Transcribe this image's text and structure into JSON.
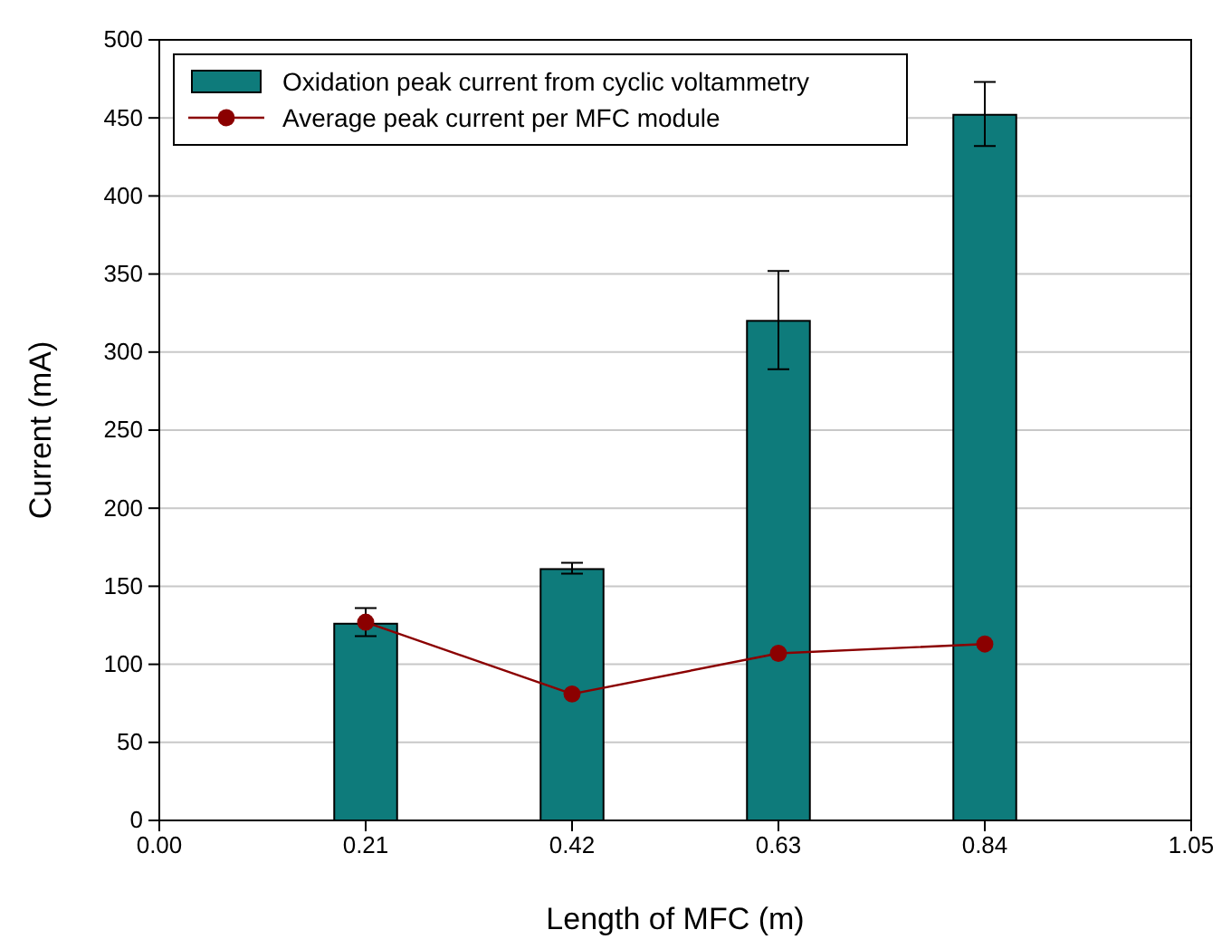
{
  "chart_data": {
    "type": "bar",
    "xlabel": "Length of MFC (m)",
    "ylabel": "Current (mA)",
    "x": [
      0.21,
      0.42,
      0.63,
      0.84
    ],
    "series": [
      {
        "name": "Oxidation peak current from cyclic voltammetry",
        "color": "#0e7b7b",
        "values": [
          126,
          161,
          320,
          452
        ],
        "errors": [
          [
            118,
            136
          ],
          [
            158,
            165
          ],
          [
            289,
            352
          ],
          [
            432,
            473
          ]
        ]
      },
      {
        "type": "line",
        "name": "Average peak current per MFC module",
        "color": "#8b0000",
        "values": [
          127,
          81,
          107,
          113
        ]
      }
    ],
    "marker": "circle",
    "xlim": [
      0,
      1.05
    ],
    "xticks": [
      {
        "value": 0,
        "label": "0.00"
      },
      {
        "value": 0.21,
        "label": "0.21"
      },
      {
        "value": 0.42,
        "label": "0.42"
      },
      {
        "value": 0.63,
        "label": "0.63"
      },
      {
        "value": 0.84,
        "label": "0.84"
      },
      {
        "value": 1.05,
        "label": "1.05"
      }
    ],
    "ylim": [
      0,
      500
    ],
    "yticks": [
      0,
      50,
      100,
      150,
      200,
      250,
      300,
      350,
      400,
      450,
      500
    ],
    "grid": "y",
    "legend": "top left"
  }
}
